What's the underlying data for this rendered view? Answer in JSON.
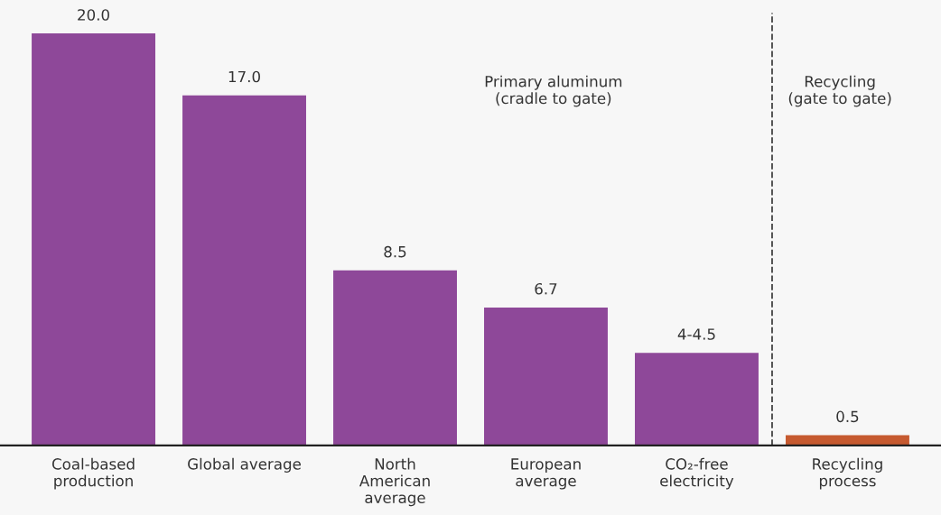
{
  "chart_data": {
    "type": "bar",
    "categories": [
      "Coal-based\nproduction",
      "Global average",
      "North\nAmerican\naverage",
      "European\naverage",
      "CO₂-free\nelectricity",
      "Recycling\nprocess"
    ],
    "values": [
      20.0,
      17.0,
      8.5,
      6.7,
      4.5,
      0.5
    ],
    "colors": [
      "#8e4899",
      "#8e4899",
      "#8e4899",
      "#8e4899",
      "#8e4899",
      "#c65a30"
    ],
    "data_labels": true,
    "value_labels": [
      "20.0",
      "17.0",
      "8.5",
      "6.7",
      "4-4.5",
      "0.5"
    ],
    "annotations": [
      "Primary aluminum\n(cradle to gate)",
      "Recycling\n(gate to gate)"
    ],
    "grid": false,
    "legend": false
  }
}
